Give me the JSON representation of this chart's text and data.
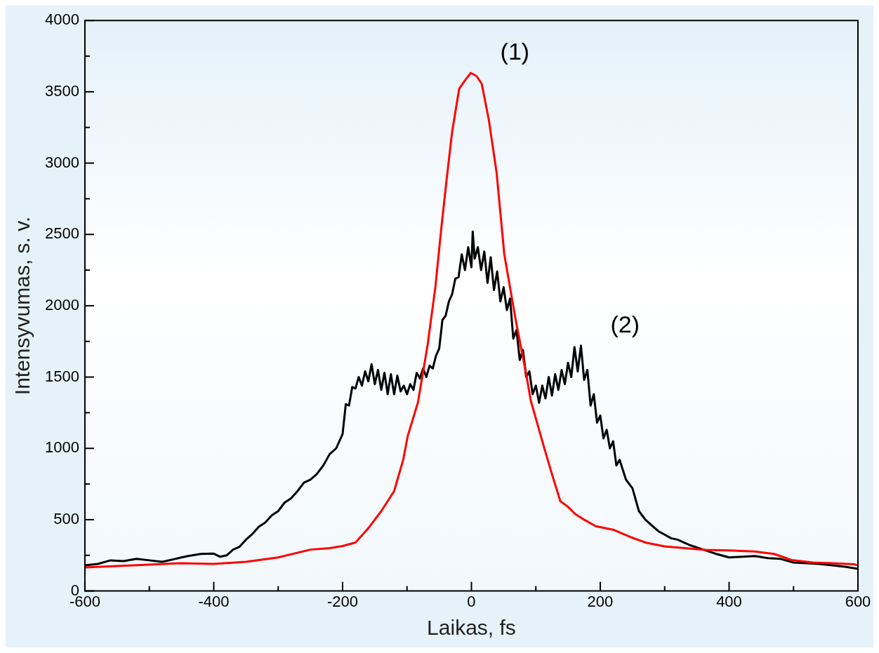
{
  "chart_data": {
    "type": "line",
    "xlabel": "Laikas, fs",
    "ylabel": "Intensyvumas, s. v.",
    "xlim": [
      -600,
      600
    ],
    "ylim": [
      0,
      4000
    ],
    "xticks": [
      -600,
      {
        "value": -500,
        "label": null
      },
      -400,
      {
        "value": -300,
        "label": null
      },
      -200,
      {
        "value": -100,
        "label": null
      },
      0,
      {
        "value": 100,
        "label": null
      },
      200,
      {
        "value": 300,
        "label": null
      },
      400,
      {
        "value": 500,
        "label": null
      },
      600
    ],
    "yticks": [
      0,
      {
        "value": 250,
        "label": null
      },
      500,
      {
        "value": 750,
        "label": null
      },
      1000,
      {
        "value": 1250,
        "label": null
      },
      1500,
      {
        "value": 1750,
        "label": null
      },
      2000,
      {
        "value": 2250,
        "label": null
      },
      2500,
      {
        "value": 2750,
        "label": null
      },
      3000,
      {
        "value": 3250,
        "label": null
      },
      3500,
      {
        "value": 3750,
        "label": null
      },
      4000
    ],
    "annotations": [
      {
        "text": "(1)",
        "x": -1,
        "y": 3632
      },
      {
        "text": "(2)",
        "x": 170,
        "y": 1720
      }
    ],
    "series": [
      {
        "color": "#ff0000",
        "x": [
          -600,
          -550,
          -500,
          -450,
          -400,
          -350,
          -300,
          -250,
          -220,
          -200,
          -180,
          -160,
          -140,
          -120,
          -106,
          -99,
          -83,
          -68,
          -56,
          -47,
          -39,
          -30,
          -19,
          -10,
          -1,
          8,
          16,
          27,
          39,
          51,
          69,
          85,
          92,
          112,
          125,
          138,
          150,
          161,
          175,
          193,
          220,
          247,
          270,
          300,
          363,
          400,
          439,
          470,
          497,
          530,
          560,
          594,
          600
        ],
        "values": [
          165,
          175,
          185,
          195,
          190,
          205,
          235,
          290,
          300,
          315,
          340,
          440,
          560,
          700,
          918,
          1084,
          1322,
          1725,
          2129,
          2532,
          2865,
          3218,
          3521,
          3580,
          3632,
          3610,
          3556,
          3304,
          2936,
          2361,
          1892,
          1523,
          1337,
          1019,
          820,
          630,
          590,
          540,
          500,
          454,
          430,
          378,
          340,
          313,
          288,
          285,
          277,
          260,
          217,
          200,
          195,
          187,
          180
        ]
      },
      {
        "color": "#000000",
        "x": [
          -600,
          -580,
          -560,
          -540,
          -520,
          -500,
          -480,
          -460,
          -440,
          -420,
          -400,
          -390,
          -380,
          -370,
          -360,
          -350,
          -340,
          -330,
          -320,
          -310,
          -300,
          -290,
          -280,
          -270,
          -260,
          -250,
          -240,
          -230,
          -220,
          -210,
          -200,
          -195,
          -190,
          -185,
          -180,
          -175,
          -170,
          -165,
          -160,
          -155,
          -150,
          -145,
          -140,
          -135,
          -130,
          -125,
          -120,
          -115,
          -110,
          -105,
          -100,
          -95,
          -90,
          -85,
          -80,
          -75,
          -70,
          -65,
          -60,
          -55,
          -50,
          -45,
          -40,
          -35,
          -30,
          -25,
          -20,
          -15,
          -10,
          -5,
          0,
          2,
          5,
          10,
          15,
          20,
          25,
          30,
          35,
          40,
          45,
          50,
          55,
          60,
          65,
          70,
          75,
          80,
          85,
          90,
          95,
          100,
          105,
          110,
          115,
          120,
          125,
          130,
          135,
          140,
          145,
          150,
          155,
          160,
          165,
          170,
          175,
          180,
          185,
          190,
          195,
          200,
          205,
          210,
          215,
          220,
          225,
          230,
          240,
          250,
          260,
          270,
          280,
          290,
          300,
          310,
          320,
          340,
          360,
          380,
          400,
          420,
          440,
          460,
          480,
          500,
          520,
          540,
          560,
          580,
          600
        ],
        "values": [
          180,
          190,
          215,
          210,
          225,
          215,
          205,
          225,
          245,
          260,
          262,
          240,
          250,
          290,
          310,
          360,
          400,
          450,
          480,
          530,
          560,
          620,
          650,
          700,
          760,
          780,
          820,
          880,
          960,
          1000,
          1100,
          1310,
          1300,
          1430,
          1420,
          1500,
          1440,
          1540,
          1470,
          1590,
          1450,
          1550,
          1410,
          1530,
          1380,
          1520,
          1380,
          1510,
          1400,
          1440,
          1380,
          1450,
          1410,
          1530,
          1490,
          1560,
          1500,
          1580,
          1560,
          1650,
          1700,
          1900,
          1930,
          2030,
          2080,
          2190,
          2200,
          2360,
          2250,
          2410,
          2270,
          2520,
          2330,
          2410,
          2250,
          2380,
          2160,
          2340,
          2110,
          2240,
          2030,
          2130,
          1970,
          2050,
          1770,
          1830,
          1620,
          1690,
          1500,
          1540,
          1380,
          1440,
          1320,
          1440,
          1350,
          1500,
          1370,
          1520,
          1410,
          1550,
          1450,
          1600,
          1500,
          1710,
          1540,
          1720,
          1480,
          1550,
          1300,
          1380,
          1180,
          1230,
          1070,
          1130,
          1000,
          1050,
          880,
          920,
          780,
          720,
          560,
          500,
          460,
          420,
          395,
          370,
          360,
          320,
          290,
          260,
          235,
          240,
          245,
          230,
          225,
          200,
          195,
          190,
          180,
          170,
          155
        ]
      }
    ]
  }
}
